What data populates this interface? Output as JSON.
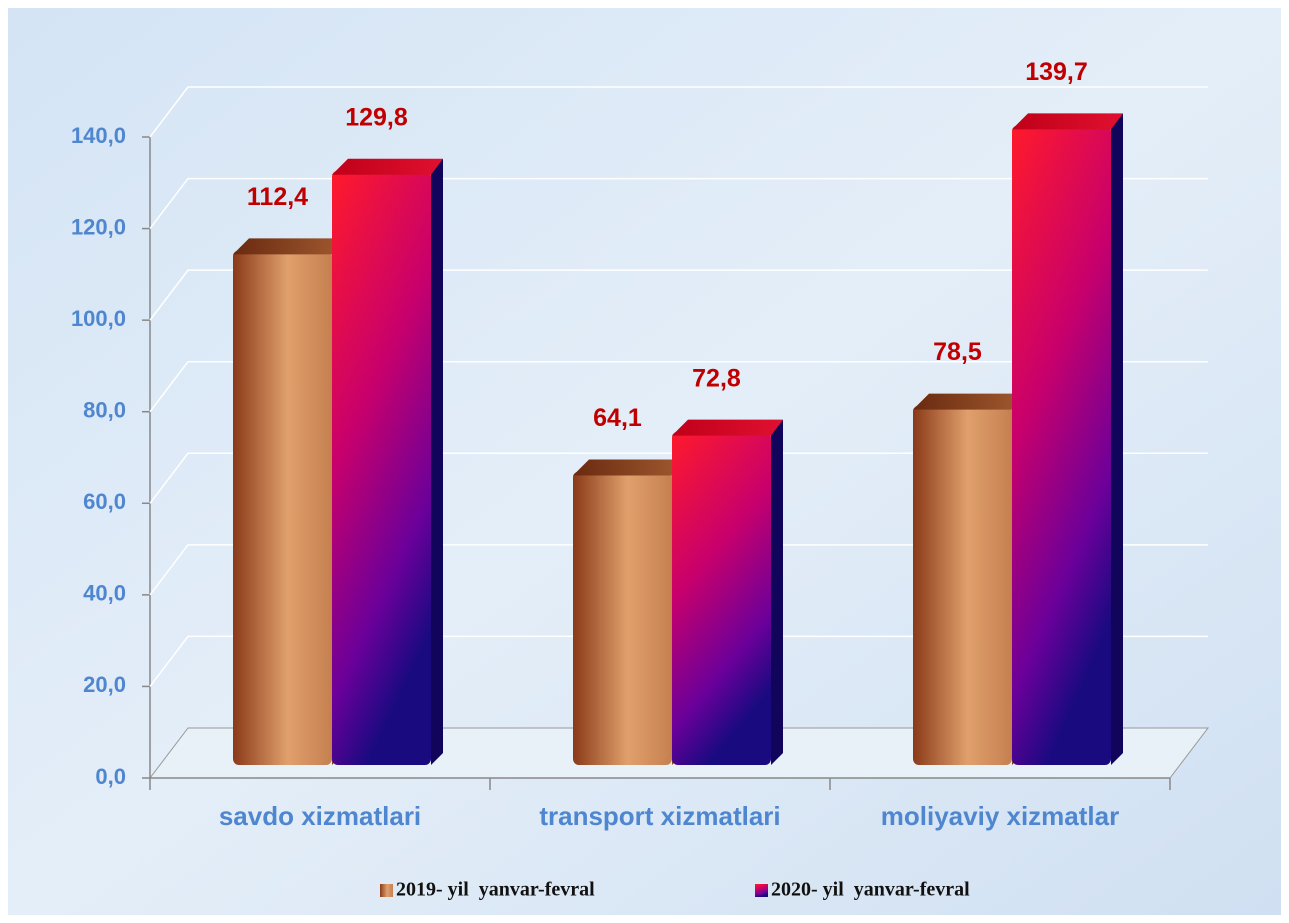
{
  "chart_data": {
    "type": "bar3d",
    "categories": [
      "savdo xizmatlari",
      "transport xizmatlari",
      "moliyaviy xizmatlar"
    ],
    "series": [
      {
        "name": "2019- yil  yanvar-fevral",
        "color": "#c0703f",
        "values": [
          112.4,
          64.1,
          78.5
        ],
        "value_labels": [
          "112,4",
          "64,1",
          "78,5"
        ]
      },
      {
        "name": "2020- yil  yanvar-fevral",
        "color": "#d0105a",
        "values": [
          129.8,
          72.8,
          139.7
        ],
        "value_labels": [
          "129,8",
          "72,8",
          "139,7"
        ]
      }
    ],
    "ylim": [
      0,
      140
    ],
    "yticks": [
      {
        "value": 0,
        "label": "0,0"
      },
      {
        "value": 20,
        "label": "20,0"
      },
      {
        "value": 40,
        "label": "40,0"
      },
      {
        "value": 60,
        "label": "60,0"
      },
      {
        "value": 80,
        "label": "80,0"
      },
      {
        "value": 100,
        "label": "100,0"
      },
      {
        "value": 120,
        "label": "120,0"
      },
      {
        "value": 140,
        "label": "140,0"
      }
    ],
    "grid": true,
    "legend": "bottom"
  }
}
